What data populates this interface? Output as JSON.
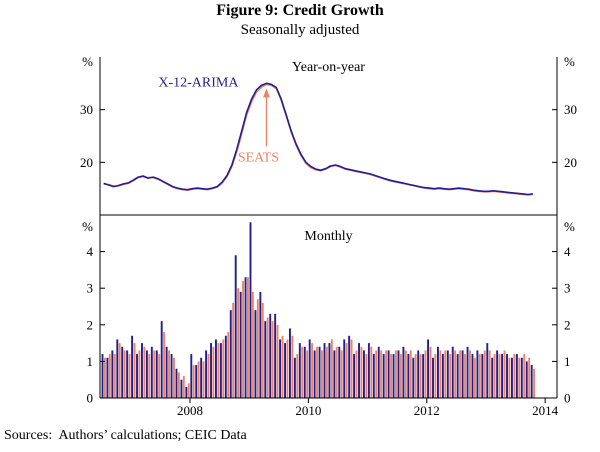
{
  "figure": {
    "title": "Figure 9: Credit Growth",
    "subtitle": "Seasonally adjusted",
    "source": "Sources:  Authors’ calculations; CEIC Data"
  },
  "chart_data": {
    "type": "multi-panel",
    "background": "#ffffff",
    "x_range": [
      2006.48,
      2014.2
    ],
    "xticks": [
      2008,
      2010,
      2012,
      2014
    ],
    "months": [
      "2006-07",
      "2006-08",
      "2006-09",
      "2006-10",
      "2006-11",
      "2006-12",
      "2007-01",
      "2007-02",
      "2007-03",
      "2007-04",
      "2007-05",
      "2007-06",
      "2007-07",
      "2007-08",
      "2007-09",
      "2007-10",
      "2007-11",
      "2007-12",
      "2008-01",
      "2008-02",
      "2008-03",
      "2008-04",
      "2008-05",
      "2008-06",
      "2008-07",
      "2008-08",
      "2008-09",
      "2008-10",
      "2008-11",
      "2008-12",
      "2009-01",
      "2009-02",
      "2009-03",
      "2009-04",
      "2009-05",
      "2009-06",
      "2009-07",
      "2009-08",
      "2009-09",
      "2009-10",
      "2009-11",
      "2009-12",
      "2010-01",
      "2010-02",
      "2010-03",
      "2010-04",
      "2010-05",
      "2010-06",
      "2010-07",
      "2010-08",
      "2010-09",
      "2010-10",
      "2010-11",
      "2010-12",
      "2011-01",
      "2011-02",
      "2011-03",
      "2011-04",
      "2011-05",
      "2011-06",
      "2011-07",
      "2011-08",
      "2011-09",
      "2011-10",
      "2011-11",
      "2011-12",
      "2012-01",
      "2012-02",
      "2012-03",
      "2012-04",
      "2012-05",
      "2012-06",
      "2012-07",
      "2012-08",
      "2012-09",
      "2012-10",
      "2012-11",
      "2012-12",
      "2013-01",
      "2013-02",
      "2013-03",
      "2013-04",
      "2013-05",
      "2013-06",
      "2013-07",
      "2013-08",
      "2013-09",
      "2013-10"
    ],
    "panels": [
      {
        "type": "line",
        "title": "Year-on-year",
        "unit": "%",
        "ylim": [
          10,
          40
        ],
        "yticks": [
          20,
          30
        ],
        "series": [
          {
            "name": "X-12-ARIMA",
            "color": "#1f1f8f",
            "values": [
              16.0,
              15.7,
              15.4,
              15.6,
              15.9,
              16.1,
              16.6,
              17.2,
              17.4,
              17.0,
              17.2,
              16.9,
              16.4,
              15.9,
              15.4,
              15.1,
              14.9,
              14.8,
              15.0,
              15.1,
              15.0,
              14.9,
              15.1,
              15.4,
              16.2,
              17.5,
              19.5,
              22.5,
              26.0,
              29.5,
              32.0,
              33.8,
              34.6,
              35.0,
              34.8,
              34.2,
              32.0,
              29.0,
              26.0,
              23.5,
              21.5,
              20.0,
              19.2,
              18.7,
              18.5,
              18.8,
              19.3,
              19.5,
              19.2,
              18.8,
              18.6,
              18.4,
              18.2,
              18.0,
              17.8,
              17.5,
              17.2,
              16.9,
              16.6,
              16.4,
              16.2,
              16.0,
              15.8,
              15.6,
              15.4,
              15.2,
              15.1,
              15.0,
              15.1,
              15.0,
              14.9,
              15.0,
              15.1,
              15.0,
              14.9,
              14.7,
              14.6,
              14.5,
              14.5,
              14.6,
              14.5,
              14.4,
              14.3,
              14.2,
              14.1,
              14.0,
              13.9,
              14.0
            ]
          },
          {
            "name": "SEATS",
            "color": "#ef8266",
            "values": [
              15.9,
              15.8,
              15.5,
              15.5,
              15.8,
              16.0,
              16.5,
              17.1,
              17.3,
              17.1,
              17.1,
              16.8,
              16.3,
              15.8,
              15.3,
              15.0,
              14.8,
              14.7,
              14.9,
              15.0,
              14.9,
              14.8,
              15.0,
              15.3,
              16.0,
              17.3,
              19.2,
              22.0,
              25.5,
              29.0,
              31.5,
              33.4,
              34.3,
              34.8,
              34.6,
              34.0,
              31.8,
              28.8,
              25.8,
              23.3,
              21.3,
              19.8,
              19.0,
              18.6,
              18.4,
              18.7,
              19.2,
              19.4,
              19.1,
              18.7,
              18.5,
              18.3,
              18.1,
              17.9,
              17.7,
              17.4,
              17.1,
              16.8,
              16.5,
              16.3,
              16.1,
              15.9,
              15.7,
              15.5,
              15.3,
              15.1,
              15.0,
              14.9,
              15.0,
              14.9,
              14.8,
              14.9,
              15.0,
              14.9,
              14.8,
              14.6,
              14.5,
              14.4,
              14.4,
              14.5,
              14.4,
              14.3,
              14.2,
              14.1,
              14.0,
              13.9,
              13.8,
              13.9
            ]
          }
        ]
      },
      {
        "type": "bar",
        "title": "Monthly",
        "unit": "%",
        "ylim": [
          0,
          5
        ],
        "yticks": [
          0,
          1,
          2,
          3,
          4
        ],
        "series": [
          {
            "name": "X-12-ARIMA",
            "color": "#1f1f8f",
            "values": [
              1.2,
              1.1,
              1.3,
              1.6,
              1.4,
              1.3,
              1.7,
              1.2,
              1.5,
              1.3,
              1.4,
              1.3,
              2.1,
              1.4,
              1.2,
              0.8,
              0.5,
              0.3,
              1.2,
              0.9,
              1.1,
              1.3,
              1.5,
              1.6,
              1.5,
              1.7,
              2.4,
              3.9,
              2.9,
              3.3,
              4.8,
              2.4,
              2.9,
              2.1,
              2.3,
              2.3,
              1.6,
              1.5,
              1.9,
              1.1,
              1.5,
              1.4,
              1.6,
              1.3,
              1.4,
              1.5,
              1.5,
              1.3,
              1.4,
              1.6,
              1.7,
              1.2,
              1.5,
              1.3,
              1.5,
              1.2,
              1.4,
              1.2,
              1.3,
              1.2,
              1.3,
              1.4,
              1.2,
              1.1,
              1.3,
              1.2,
              1.6,
              1.1,
              1.4,
              1.2,
              1.3,
              1.4,
              1.2,
              1.3,
              1.4,
              1.2,
              1.3,
              1.2,
              1.5,
              1.1,
              1.3,
              1.2,
              1.2,
              1.1,
              1.2,
              1.1,
              1.0,
              0.9
            ]
          },
          {
            "name": "SEATS",
            "color": "#ef8266",
            "values": [
              1.1,
              1.2,
              1.2,
              1.5,
              1.3,
              1.2,
              1.5,
              1.3,
              1.4,
              1.2,
              1.3,
              1.2,
              1.8,
              1.3,
              1.1,
              0.7,
              0.6,
              0.4,
              0.9,
              1.0,
              1.0,
              1.2,
              1.4,
              1.5,
              1.6,
              1.8,
              2.6,
              3.0,
              3.2,
              3.3,
              2.9,
              2.7,
              2.6,
              2.2,
              2.1,
              2.0,
              1.7,
              1.6,
              1.7,
              1.2,
              1.4,
              1.3,
              1.5,
              1.4,
              1.3,
              1.4,
              1.6,
              1.4,
              1.3,
              1.5,
              1.6,
              1.3,
              1.4,
              1.2,
              1.4,
              1.3,
              1.3,
              1.3,
              1.2,
              1.3,
              1.2,
              1.3,
              1.3,
              1.2,
              1.2,
              1.3,
              1.4,
              1.2,
              1.3,
              1.3,
              1.2,
              1.3,
              1.3,
              1.2,
              1.3,
              1.1,
              1.2,
              1.3,
              1.3,
              1.2,
              1.2,
              1.3,
              1.1,
              1.2,
              1.1,
              1.2,
              1.1,
              0.8
            ]
          }
        ]
      }
    ]
  }
}
